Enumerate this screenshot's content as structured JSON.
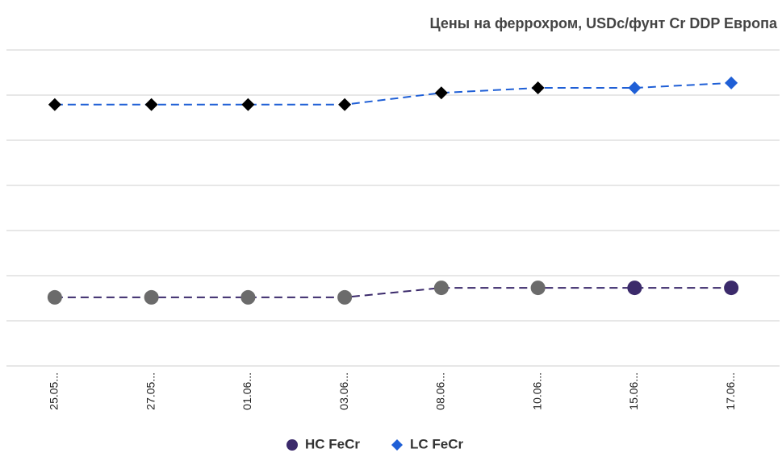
{
  "chart_data": {
    "type": "line",
    "title": "Цены на феррохром, USDc/фунт Cr DDP Европа",
    "categories": [
      "25.05...",
      "27.05...",
      "01.06...",
      "03.06...",
      "08.06...",
      "10.06...",
      "15.06...",
      "17.06..."
    ],
    "series": [
      {
        "name": "HC FeCr",
        "color": "#3b2a6b",
        "marker": "circle",
        "point_colors": [
          "#6b6b6b",
          "#6b6b6b",
          "#6b6b6b",
          "#6b6b6b",
          "#6b6b6b",
          "#6b6b6b",
          "#3b2a6b",
          "#3b2a6b"
        ],
        "values": [
          1.52,
          1.52,
          1.52,
          1.52,
          1.73,
          1.73,
          1.73,
          1.73
        ]
      },
      {
        "name": "LC FeCr",
        "color": "#1f5fd6",
        "marker": "diamond",
        "point_colors": [
          "#000000",
          "#000000",
          "#000000",
          "#000000",
          "#000000",
          "#000000",
          "#1f5fd6",
          "#1f5fd6"
        ],
        "values": [
          5.79,
          5.79,
          5.79,
          5.79,
          6.05,
          6.16,
          6.16,
          6.27
        ]
      }
    ],
    "ylim": [
      0,
      7
    ],
    "yticks": [
      0,
      1,
      2,
      3,
      4,
      5,
      6,
      7
    ],
    "grid": true,
    "legend": "bottom"
  }
}
